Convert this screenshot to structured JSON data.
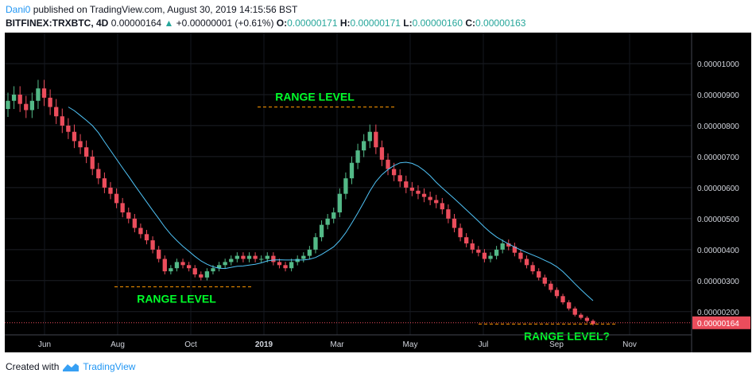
{
  "header": {
    "author": "Dani0",
    "published": "published on TradingView.com, August 30, 2019 14:15:56 BST",
    "symbol": "BITFINEX:TRXBTC, 4D",
    "last": "0.00000164",
    "change": "+0.00000001 (+0.61%)",
    "o_label": "O:",
    "o": "0.00000171",
    "h_label": "H:",
    "h": "0.00000171",
    "l_label": "L:",
    "l": "0.00000160",
    "c_label": "C:",
    "c": "0.00000163"
  },
  "footer": {
    "created_with": "Created with",
    "brand": "TradingView"
  },
  "colors": {
    "background": "#000000",
    "up": "#53b987",
    "down": "#eb4d5c",
    "ma": "#4fc3f7",
    "annotation": "#00ff2a",
    "level_line": "#ff9800",
    "price_tag": "#eb4d5c"
  },
  "chart_data": {
    "type": "candlestick",
    "ylim": [
      1.25e-06,
      1.1e-06
    ],
    "price_axis": {
      "ticks": [
        "0.00001000",
        "0.00000900",
        "0.00000800",
        "0.00000700",
        "0.00000600",
        "0.00000500",
        "0.00000400",
        "0.00000300",
        "0.00000200"
      ],
      "current_price": "0.00000164"
    },
    "time_axis": [
      "Jun",
      "Aug",
      "Oct",
      "2019",
      "Mar",
      "May",
      "Jul",
      "Sep",
      "Nov"
    ],
    "candles_close": [
      8.8e-06,
      9e-06,
      8.7e-06,
      8.5e-06,
      8.8e-06,
      9.2e-06,
      8.9e-06,
      8.6e-06,
      8.3e-06,
      8e-06,
      7.8e-06,
      7.5e-06,
      7.3e-06,
      7e-06,
      6.6e-06,
      6.3e-06,
      6e-06,
      5.8e-06,
      5.5e-06,
      5.2e-06,
      5e-06,
      4.7e-06,
      4.5e-06,
      4.3e-06,
      4e-06,
      3.7e-06,
      3.3e-06,
      3.4e-06,
      3.6e-06,
      3.5e-06,
      3.4e-06,
      3.2e-06,
      3.1e-06,
      3.3e-06,
      3.4e-06,
      3.5e-06,
      3.6e-06,
      3.7e-06,
      3.8e-06,
      3.7e-06,
      3.8e-06,
      3.7e-06,
      3.7e-06,
      3.8e-06,
      3.6e-06,
      3.5e-06,
      3.4e-06,
      3.6e-06,
      3.7e-06,
      3.8e-06,
      4e-06,
      4.4e-06,
      4.8e-06,
      5e-06,
      5.2e-06,
      5.8e-06,
      6.3e-06,
      6.8e-06,
      7.2e-06,
      7.5e-06,
      7.8e-06,
      7.3e-06,
      6.9e-06,
      6.6e-06,
      6.4e-06,
      6.2e-06,
      6e-06,
      5.9e-06,
      5.8e-06,
      5.7e-06,
      5.6e-06,
      5.5e-06,
      5.3e-06,
      5e-06,
      4.7e-06,
      4.4e-06,
      4.2e-06,
      4e-06,
      3.9e-06,
      3.7e-06,
      3.8e-06,
      4e-06,
      4.2e-06,
      4.1e-06,
      3.9e-06,
      3.7e-06,
      3.5e-06,
      3.3e-06,
      3.1e-06,
      2.9e-06,
      2.7e-06,
      2.5e-06,
      2.3e-06,
      2.1e-06,
      1.9e-06,
      1.8e-06,
      1.7e-06,
      1.6e-06
    ],
    "annotations": [
      {
        "text": "RANGE LEVEL",
        "level": 8.6e-06
      },
      {
        "text": "RANGE LEVEL",
        "level": 2.8e-06
      },
      {
        "text": "RANGE LEVEL?",
        "level": 1.6e-06
      }
    ]
  }
}
